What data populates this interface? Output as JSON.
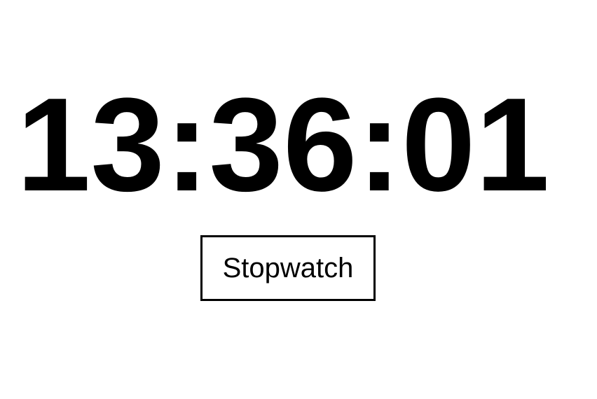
{
  "clock": {
    "time": "13:36:01"
  },
  "controls": {
    "stopwatch_label": "Stopwatch"
  }
}
